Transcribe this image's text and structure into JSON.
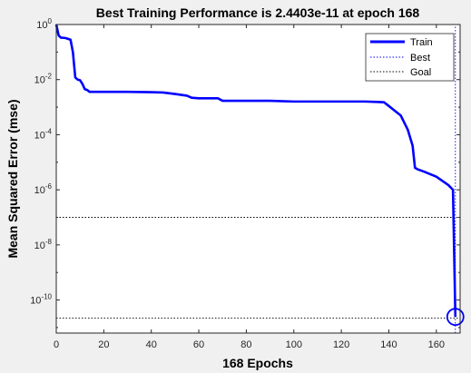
{
  "chart_data": {
    "type": "line",
    "title": "Best Training Performance is 2.4403e-11 at epoch 168",
    "xlabel": "168 Epochs",
    "ylabel": "Mean Squared Error  (mse)",
    "y_scale": "log",
    "xlim": [
      0,
      170
    ],
    "ylim_exponents": [
      -11.2,
      0
    ],
    "x_ticks": [
      0,
      20,
      40,
      60,
      80,
      100,
      120,
      140,
      160
    ],
    "y_ticks": [
      {
        "exp": 0,
        "base": "10",
        "sup": "0"
      },
      {
        "exp": -2,
        "base": "10",
        "sup": "-2"
      },
      {
        "exp": -4,
        "base": "10",
        "sup": "-4"
      },
      {
        "exp": -6,
        "base": "10",
        "sup": "-6"
      },
      {
        "exp": -8,
        "base": "10",
        "sup": "-8"
      },
      {
        "exp": -10,
        "base": "10",
        "sup": "-10"
      }
    ],
    "grid": false,
    "legend_position": "top-right",
    "series": [
      {
        "name": "Train",
        "color": "#0000ff",
        "style": "solid",
        "x": [
          0,
          1,
          2,
          3,
          4,
          5,
          6,
          7,
          8,
          9,
          10,
          11,
          12,
          13,
          14,
          20,
          30,
          40,
          45,
          50,
          55,
          57,
          60,
          65,
          68,
          70,
          80,
          90,
          100,
          110,
          120,
          130,
          135,
          138,
          140,
          142,
          145,
          148,
          150,
          151,
          152,
          155,
          160,
          165,
          167,
          168
        ],
        "y": [
          1,
          0.4,
          0.33,
          0.33,
          0.32,
          0.3,
          0.28,
          0.1,
          0.012,
          0.01,
          0.0095,
          0.007,
          0.0045,
          0.0042,
          0.0036,
          0.0036,
          0.0036,
          0.0035,
          0.0034,
          0.003,
          0.0026,
          0.0022,
          0.0021,
          0.0021,
          0.0021,
          0.0017,
          0.0017,
          0.0017,
          0.0016,
          0.0016,
          0.0016,
          0.0016,
          0.00155,
          0.0015,
          0.0011,
          0.0008,
          0.0005,
          0.00015,
          4e-05,
          6.3e-06,
          5.6e-06,
          4.5e-06,
          3e-06,
          1.5e-06,
          1e-06,
          2.4403e-11
        ]
      },
      {
        "name": "Best",
        "color": "#0000ff",
        "style": "dotted",
        "x": [
          168,
          168
        ],
        "y": [
          6.31e-12,
          1
        ]
      },
      {
        "name": "Goal",
        "color": "#000000",
        "style": "dotted",
        "x": [
          0,
          170
        ],
        "y": [
          1e-07,
          1e-07
        ]
      }
    ],
    "goal_line_2": {
      "x": [
        0,
        170
      ],
      "y": [
        2.2e-11,
        2.2e-11
      ]
    },
    "best_marker": {
      "x": 168,
      "y": 2.4403e-11,
      "color": "#0000ff"
    }
  }
}
